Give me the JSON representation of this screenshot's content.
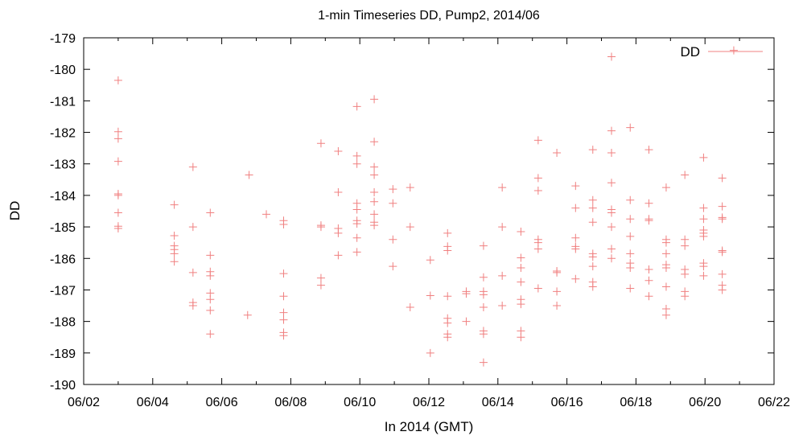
{
  "chart_data": {
    "type": "scatter",
    "title": "1-min Timeseries DD, Pump2, 2014/06",
    "xlabel": "In 2014 (GMT)",
    "ylabel": "DD",
    "xlim": [
      "2014-06-02",
      "2014-06-22"
    ],
    "ylim": [
      -190,
      -179
    ],
    "x_ticks": [
      "06/02",
      "06/04",
      "06/06",
      "06/08",
      "06/10",
      "06/12",
      "06/14",
      "06/16",
      "06/18",
      "06/20",
      "06/22"
    ],
    "y_ticks": [
      -190,
      -189,
      -188,
      -187,
      -186,
      -185,
      -184,
      -183,
      -182,
      -181,
      -180,
      -179
    ],
    "grid": false,
    "legend": "top-right",
    "series": [
      {
        "name": "DD",
        "color": "#f08080",
        "marker": "plus",
        "points": [
          [
            "2014-06-03 00:00",
            -180.35
          ],
          [
            "2014-06-03 00:00",
            -181.98
          ],
          [
            "2014-06-03 00:00",
            -182.2
          ],
          [
            "2014-06-03 00:00",
            -182.92
          ],
          [
            "2014-06-03 00:00",
            -183.95
          ],
          [
            "2014-06-03 00:00",
            -184.0
          ],
          [
            "2014-06-03 00:00",
            -184.55
          ],
          [
            "2014-06-03 00:00",
            -184.98
          ],
          [
            "2014-06-03 00:00",
            -185.05
          ],
          [
            "2014-06-04 15:00",
            -184.3
          ],
          [
            "2014-06-04 15:00",
            -185.28
          ],
          [
            "2014-06-04 15:00",
            -185.6
          ],
          [
            "2014-06-04 15:00",
            -185.72
          ],
          [
            "2014-06-04 15:00",
            -185.85
          ],
          [
            "2014-06-04 15:00",
            -186.1
          ],
          [
            "2014-06-05 04:00",
            -183.1
          ],
          [
            "2014-06-05 04:00",
            -185.0
          ],
          [
            "2014-06-05 04:00",
            -186.45
          ],
          [
            "2014-06-05 04:00",
            -187.4
          ],
          [
            "2014-06-05 04:00",
            -187.5
          ],
          [
            "2014-06-05 16:00",
            -184.55
          ],
          [
            "2014-06-05 16:00",
            -185.9
          ],
          [
            "2014-06-05 16:00",
            -186.42
          ],
          [
            "2014-06-05 16:00",
            -186.55
          ],
          [
            "2014-06-05 16:00",
            -187.1
          ],
          [
            "2014-06-05 16:00",
            -187.3
          ],
          [
            "2014-06-05 16:00",
            -187.65
          ],
          [
            "2014-06-05 16:00",
            -188.4
          ],
          [
            "2014-06-06 18:00",
            -187.8
          ],
          [
            "2014-06-06 19:00",
            -183.35
          ],
          [
            "2014-06-07 07:00",
            -184.6
          ],
          [
            "2014-06-07 19:00",
            -184.8
          ],
          [
            "2014-06-07 19:00",
            -184.92
          ],
          [
            "2014-06-07 19:00",
            -186.48
          ],
          [
            "2014-06-07 19:00",
            -187.2
          ],
          [
            "2014-06-07 19:00",
            -187.72
          ],
          [
            "2014-06-07 19:00",
            -187.95
          ],
          [
            "2014-06-07 19:00",
            -188.35
          ],
          [
            "2014-06-07 19:00",
            -188.45
          ],
          [
            "2014-06-08 21:00",
            -182.35
          ],
          [
            "2014-06-08 21:00",
            -184.95
          ],
          [
            "2014-06-08 21:00",
            -185.0
          ],
          [
            "2014-06-08 21:00",
            -186.62
          ],
          [
            "2014-06-08 21:00",
            -186.85
          ],
          [
            "2014-06-09 09:00",
            -182.6
          ],
          [
            "2014-06-09 09:00",
            -183.9
          ],
          [
            "2014-06-09 09:00",
            -185.05
          ],
          [
            "2014-06-09 09:00",
            -185.2
          ],
          [
            "2014-06-09 09:00",
            -185.9
          ],
          [
            "2014-06-09 22:00",
            -181.18
          ],
          [
            "2014-06-09 22:00",
            -182.75
          ],
          [
            "2014-06-09 22:00",
            -183.0
          ],
          [
            "2014-06-09 22:00",
            -184.25
          ],
          [
            "2014-06-09 22:00",
            -184.45
          ],
          [
            "2014-06-09 22:00",
            -184.8
          ],
          [
            "2014-06-09 22:00",
            -184.9
          ],
          [
            "2014-06-09 22:00",
            -185.35
          ],
          [
            "2014-06-09 22:00",
            -185.8
          ],
          [
            "2014-06-10 10:00",
            -180.95
          ],
          [
            "2014-06-10 10:00",
            -182.3
          ],
          [
            "2014-06-10 10:00",
            -183.1
          ],
          [
            "2014-06-10 10:00",
            -183.35
          ],
          [
            "2014-06-10 10:00",
            -183.9
          ],
          [
            "2014-06-10 10:00",
            -184.2
          ],
          [
            "2014-06-10 10:00",
            -184.6
          ],
          [
            "2014-06-10 10:00",
            -184.85
          ],
          [
            "2014-06-10 10:00",
            -184.95
          ],
          [
            "2014-06-10 23:00",
            -183.8
          ],
          [
            "2014-06-10 23:00",
            -184.25
          ],
          [
            "2014-06-10 23:00",
            -185.4
          ],
          [
            "2014-06-10 23:00",
            -186.25
          ],
          [
            "2014-06-11 11:00",
            -183.75
          ],
          [
            "2014-06-11 11:00",
            -185.0
          ],
          [
            "2014-06-11 11:00",
            -187.55
          ],
          [
            "2014-06-12 01:00",
            -186.05
          ],
          [
            "2014-06-12 01:00",
            -187.18
          ],
          [
            "2014-06-12 01:00",
            -189.0
          ],
          [
            "2014-06-12 13:00",
            -185.2
          ],
          [
            "2014-06-12 13:00",
            -185.62
          ],
          [
            "2014-06-12 13:00",
            -185.75
          ],
          [
            "2014-06-12 13:00",
            -187.2
          ],
          [
            "2014-06-12 13:00",
            -187.9
          ],
          [
            "2014-06-12 13:00",
            -188.05
          ],
          [
            "2014-06-12 13:00",
            -188.4
          ],
          [
            "2014-06-12 13:00",
            -188.5
          ],
          [
            "2014-06-13 02:00",
            -187.05
          ],
          [
            "2014-06-13 02:00",
            -187.12
          ],
          [
            "2014-06-13 02:00",
            -188.0
          ],
          [
            "2014-06-13 14:00",
            -185.6
          ],
          [
            "2014-06-13 14:00",
            -186.6
          ],
          [
            "2014-06-13 14:00",
            -187.05
          ],
          [
            "2014-06-13 14:00",
            -187.15
          ],
          [
            "2014-06-13 14:00",
            -187.55
          ],
          [
            "2014-06-13 14:00",
            -188.3
          ],
          [
            "2014-06-13 14:00",
            -188.4
          ],
          [
            "2014-06-13 14:00",
            -189.3
          ],
          [
            "2014-06-14 03:00",
            -183.75
          ],
          [
            "2014-06-14 03:00",
            -185.0
          ],
          [
            "2014-06-14 03:00",
            -186.55
          ],
          [
            "2014-06-14 03:00",
            -187.5
          ],
          [
            "2014-06-14 16:00",
            -185.15
          ],
          [
            "2014-06-14 16:00",
            -185.98
          ],
          [
            "2014-06-14 16:00",
            -186.3
          ],
          [
            "2014-06-14 16:00",
            -186.75
          ],
          [
            "2014-06-14 16:00",
            -187.3
          ],
          [
            "2014-06-14 16:00",
            -187.45
          ],
          [
            "2014-06-14 16:00",
            -188.3
          ],
          [
            "2014-06-14 16:00",
            -188.5
          ],
          [
            "2014-06-15 04:00",
            -182.25
          ],
          [
            "2014-06-15 04:00",
            -183.45
          ],
          [
            "2014-06-15 04:00",
            -183.85
          ],
          [
            "2014-06-15 04:00",
            -185.4
          ],
          [
            "2014-06-15 04:00",
            -185.5
          ],
          [
            "2014-06-15 04:00",
            -185.7
          ],
          [
            "2014-06-15 04:00",
            -186.95
          ],
          [
            "2014-06-15 17:00",
            -182.65
          ],
          [
            "2014-06-15 17:00",
            -186.4
          ],
          [
            "2014-06-15 17:00",
            -186.45
          ],
          [
            "2014-06-15 17:00",
            -187.05
          ],
          [
            "2014-06-15 17:00",
            -187.5
          ],
          [
            "2014-06-16 06:00",
            -183.7
          ],
          [
            "2014-06-16 06:00",
            -184.4
          ],
          [
            "2014-06-16 06:00",
            -185.35
          ],
          [
            "2014-06-16 06:00",
            -185.62
          ],
          [
            "2014-06-16 06:00",
            -185.7
          ],
          [
            "2014-06-16 06:00",
            -186.65
          ],
          [
            "2014-06-16 18:00",
            -182.55
          ],
          [
            "2014-06-16 18:00",
            -184.15
          ],
          [
            "2014-06-16 18:00",
            -184.4
          ],
          [
            "2014-06-16 18:00",
            -184.85
          ],
          [
            "2014-06-16 18:00",
            -185.85
          ],
          [
            "2014-06-16 18:00",
            -185.95
          ],
          [
            "2014-06-16 18:00",
            -186.25
          ],
          [
            "2014-06-16 18:00",
            -186.75
          ],
          [
            "2014-06-16 18:00",
            -186.9
          ],
          [
            "2014-06-17 07:00",
            -179.6
          ],
          [
            "2014-06-17 07:00",
            -181.95
          ],
          [
            "2014-06-17 07:00",
            -182.65
          ],
          [
            "2014-06-17 07:00",
            -183.6
          ],
          [
            "2014-06-17 07:00",
            -184.45
          ],
          [
            "2014-06-17 07:00",
            -184.55
          ],
          [
            "2014-06-17 07:00",
            -185.0
          ],
          [
            "2014-06-17 07:00",
            -185.7
          ],
          [
            "2014-06-17 07:00",
            -186.0
          ],
          [
            "2014-06-17 20:00",
            -181.85
          ],
          [
            "2014-06-17 20:00",
            -184.15
          ],
          [
            "2014-06-17 20:00",
            -184.75
          ],
          [
            "2014-06-17 20:00",
            -185.3
          ],
          [
            "2014-06-17 20:00",
            -185.85
          ],
          [
            "2014-06-17 20:00",
            -186.15
          ],
          [
            "2014-06-17 20:00",
            -186.3
          ],
          [
            "2014-06-17 20:00",
            -186.95
          ],
          [
            "2014-06-18 09:00",
            -182.55
          ],
          [
            "2014-06-18 09:00",
            -184.25
          ],
          [
            "2014-06-18 09:00",
            -184.75
          ],
          [
            "2014-06-18 09:00",
            -184.8
          ],
          [
            "2014-06-18 09:00",
            -186.35
          ],
          [
            "2014-06-18 09:00",
            -186.7
          ],
          [
            "2014-06-18 09:00",
            -187.2
          ],
          [
            "2014-06-18 21:00",
            -183.75
          ],
          [
            "2014-06-18 21:00",
            -185.4
          ],
          [
            "2014-06-18 21:00",
            -185.5
          ],
          [
            "2014-06-18 21:00",
            -185.85
          ],
          [
            "2014-06-18 21:00",
            -186.2
          ],
          [
            "2014-06-18 21:00",
            -186.3
          ],
          [
            "2014-06-18 21:00",
            -186.9
          ],
          [
            "2014-06-18 21:00",
            -187.6
          ],
          [
            "2014-06-18 21:00",
            -187.8
          ],
          [
            "2014-06-19 10:00",
            -183.35
          ],
          [
            "2014-06-19 10:00",
            -185.4
          ],
          [
            "2014-06-19 10:00",
            -185.6
          ],
          [
            "2014-06-19 10:00",
            -186.35
          ],
          [
            "2014-06-19 10:00",
            -186.5
          ],
          [
            "2014-06-19 10:00",
            -187.05
          ],
          [
            "2014-06-19 10:00",
            -187.2
          ],
          [
            "2014-06-19 23:00",
            -182.8
          ],
          [
            "2014-06-19 23:00",
            -184.4
          ],
          [
            "2014-06-19 23:00",
            -184.75
          ],
          [
            "2014-06-19 23:00",
            -185.1
          ],
          [
            "2014-06-19 23:00",
            -185.2
          ],
          [
            "2014-06-19 23:00",
            -185.3
          ],
          [
            "2014-06-19 23:00",
            -186.15
          ],
          [
            "2014-06-19 23:00",
            -186.25
          ],
          [
            "2014-06-19 23:00",
            -186.55
          ],
          [
            "2014-06-20 12:00",
            -183.45
          ],
          [
            "2014-06-20 12:00",
            -184.35
          ],
          [
            "2014-06-20 12:00",
            -184.7
          ],
          [
            "2014-06-20 12:00",
            -184.75
          ],
          [
            "2014-06-20 12:00",
            -185.75
          ],
          [
            "2014-06-20 12:00",
            -185.8
          ],
          [
            "2014-06-20 12:00",
            -186.5
          ],
          [
            "2014-06-20 12:00",
            -186.85
          ],
          [
            "2014-06-20 12:00",
            -187.0
          ],
          [
            "2014-06-20 20:00",
            -179.4
          ]
        ]
      }
    ]
  }
}
